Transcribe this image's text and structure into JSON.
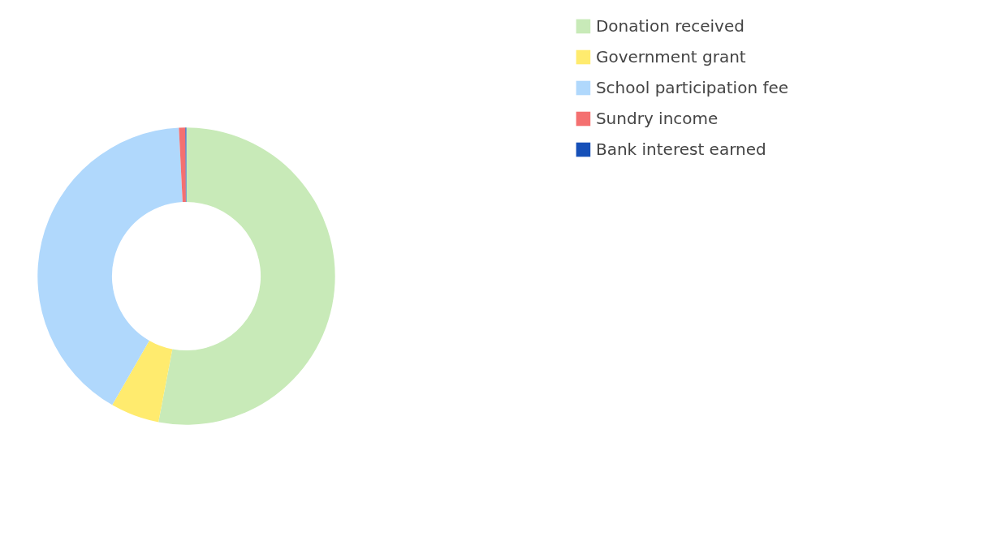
{
  "chart_data": {
    "type": "donut",
    "categories": [
      "Donation received",
      "Government grant",
      "School participation fee",
      "Sundry income",
      "Bank interest earned"
    ],
    "values": [
      53,
      5.3,
      40.9,
      0.7,
      0.1
    ],
    "colors": [
      "#c8eab8",
      "#ffeb6e",
      "#b0d8fc",
      "#f47070",
      "#1650b8"
    ],
    "legend": "top right"
  }
}
